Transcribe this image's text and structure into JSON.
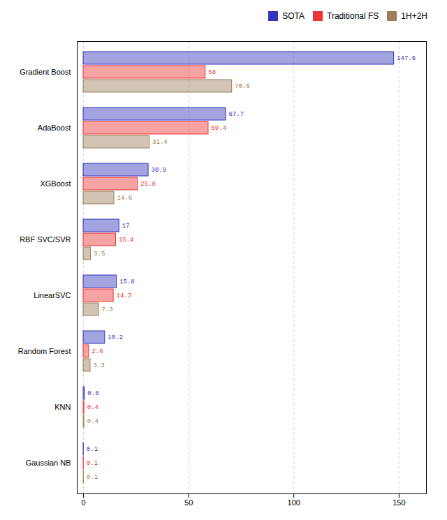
{
  "chart_data": {
    "type": "bar",
    "orientation": "horizontal",
    "categories": [
      "Gradient Boost",
      "AdaBoost",
      "XGBoost",
      "RBF SVC/SVR",
      "LinearSVC",
      "Random Forest",
      "KNN",
      "Gaussian NB"
    ],
    "series": [
      {
        "name": "SOTA",
        "color": "#3333bb",
        "values": [
          147.6,
          67.7,
          30.9,
          17.0,
          15.8,
          10.2,
          0.6,
          0.1
        ]
      },
      {
        "name": "Traditional FS",
        "color": "#ee3333",
        "values": [
          58.0,
          59.4,
          25.8,
          15.4,
          14.3,
          2.6,
          0.4,
          0.1
        ]
      },
      {
        "name": "1H+2H",
        "color": "#9b7d5a",
        "values": [
          70.6,
          31.4,
          14.6,
          3.5,
          7.3,
          3.3,
          0.4,
          0.1
        ]
      }
    ],
    "xlim": [
      -3,
      163
    ],
    "xticks": [
      0,
      50,
      100,
      150
    ],
    "grid": true,
    "legend": "upper right",
    "data_labels": true
  }
}
